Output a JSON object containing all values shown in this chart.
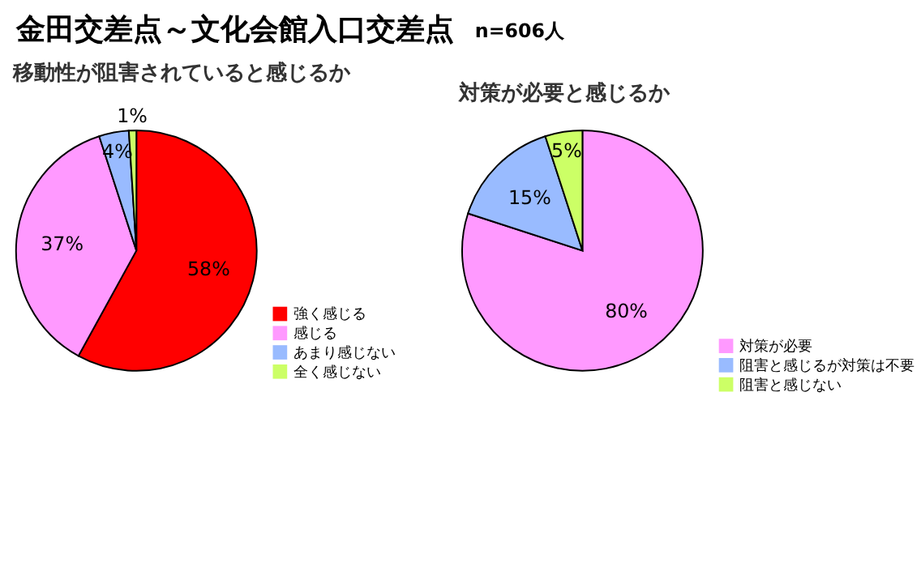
{
  "chart_data": [
    {
      "type": "pie",
      "title": "金田交差点～文化会館入口交差点",
      "subtitle": "移動性が阻害されていると感じるか",
      "annotations": [
        "n=606人"
      ],
      "categories": [
        "強く感じる",
        "感じる",
        "あまり感じない",
        "全く感じない"
      ],
      "values": [
        58,
        37,
        4,
        1
      ],
      "colors": [
        "#ff0000",
        "#ff99ff",
        "#99bbff",
        "#ccff66"
      ],
      "value_labels": [
        "58%",
        "37%",
        "4%",
        "1%"
      ],
      "legend": "bottom right"
    },
    {
      "type": "pie",
      "title": "対策が必要と感じるか",
      "categories": [
        "対策が必要",
        "阻害と感じるが対策は不要",
        "阻害と感じない"
      ],
      "values": [
        80,
        15,
        5
      ],
      "colors": [
        "#ff99ff",
        "#99bbff",
        "#ccff66"
      ],
      "value_labels": [
        "80%",
        "15%",
        "5%"
      ],
      "legend": "bottom right"
    }
  ]
}
